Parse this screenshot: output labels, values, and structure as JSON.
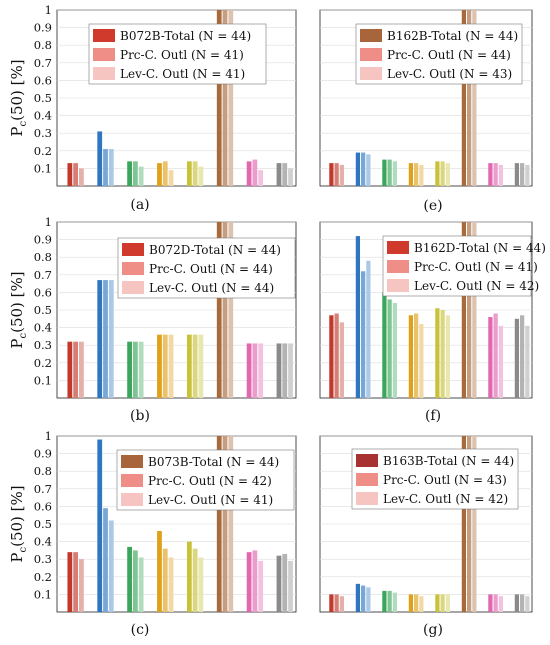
{
  "y_axis_label": {
    "main": "P",
    "sub": "c",
    "rest": "(50) [%]"
  },
  "chart_data": [
    {
      "panel": "(a)",
      "type": "bar",
      "ylim": [
        0,
        1
      ],
      "grid": true,
      "yticks": [
        "0.1",
        "0.2",
        "0.3",
        "0.4",
        "0.5",
        "0.6",
        "0.7",
        "0.8",
        "0.9",
        "1"
      ],
      "legend": [
        "B072B-Total (N = 44)",
        "Prc-C. Outl (N = 41)",
        "Lev-C. Outl (N = 41)"
      ],
      "legend_colors": [
        "#d03a2c",
        "#ee8e87",
        "#f7c5c1"
      ],
      "groups": [
        {
          "color": "#c0392b",
          "values": [
            0.13,
            0.13,
            0.1
          ]
        },
        {
          "color": "#2e77c0",
          "values": [
            0.31,
            0.21,
            0.21
          ]
        },
        {
          "color": "#3aa65a",
          "values": [
            0.14,
            0.14,
            0.11
          ]
        },
        {
          "color": "#dfa11b",
          "values": [
            0.13,
            0.14,
            0.09
          ]
        },
        {
          "color": "#c8c23a",
          "values": [
            0.14,
            0.14,
            0.11
          ]
        },
        {
          "color": "#a86a3a",
          "values": [
            1.0,
            1.0,
            1.0
          ]
        },
        {
          "color": "#e067b0",
          "values": [
            0.14,
            0.15,
            0.09
          ]
        },
        {
          "color": "#8a8a8a",
          "values": [
            0.13,
            0.13,
            0.1
          ]
        }
      ]
    },
    {
      "panel": "(b)",
      "type": "bar",
      "ylim": [
        0,
        1
      ],
      "grid": true,
      "yticks": [
        "0.1",
        "0.2",
        "0.3",
        "0.4",
        "0.5",
        "0.6",
        "0.7",
        "0.8",
        "0.9",
        "1"
      ],
      "legend": [
        "B072D-Total (N = 44)",
        "Prc-C. Outl (N = 44)",
        "Lev-C. Outl (N = 44)"
      ],
      "legend_colors": [
        "#d03a2c",
        "#ee8e87",
        "#f7c5c1"
      ],
      "groups": [
        {
          "color": "#c0392b",
          "values": [
            0.32,
            0.32,
            0.32
          ]
        },
        {
          "color": "#2e77c0",
          "values": [
            0.67,
            0.67,
            0.67
          ]
        },
        {
          "color": "#3aa65a",
          "values": [
            0.32,
            0.32,
            0.32
          ]
        },
        {
          "color": "#dfa11b",
          "values": [
            0.36,
            0.36,
            0.36
          ]
        },
        {
          "color": "#c8c23a",
          "values": [
            0.36,
            0.36,
            0.36
          ]
        },
        {
          "color": "#a86a3a",
          "values": [
            1.0,
            1.0,
            1.0
          ]
        },
        {
          "color": "#e067b0",
          "values": [
            0.31,
            0.31,
            0.31
          ]
        },
        {
          "color": "#8a8a8a",
          "values": [
            0.31,
            0.31,
            0.31
          ]
        }
      ]
    },
    {
      "panel": "(c)",
      "type": "bar",
      "ylim": [
        0,
        1
      ],
      "grid": true,
      "yticks": [
        "0.1",
        "0.2",
        "0.3",
        "0.4",
        "0.5",
        "0.6",
        "0.7",
        "0.8",
        "0.9",
        "1"
      ],
      "legend": [
        "B073B-Total (N = 44)",
        "Prc-C. Outl (N = 42)",
        "Lev-C. Outl (N = 41)"
      ],
      "legend_colors": [
        "#a8643a",
        "#ee8e87",
        "#f7c5c1"
      ],
      "groups": [
        {
          "color": "#c0392b",
          "values": [
            0.34,
            0.34,
            0.3
          ]
        },
        {
          "color": "#2e77c0",
          "values": [
            0.98,
            0.59,
            0.52
          ]
        },
        {
          "color": "#3aa65a",
          "values": [
            0.37,
            0.35,
            0.31
          ]
        },
        {
          "color": "#dfa11b",
          "values": [
            0.46,
            0.36,
            0.31
          ]
        },
        {
          "color": "#c8c23a",
          "values": [
            0.4,
            0.36,
            0.31
          ]
        },
        {
          "color": "#a86a3a",
          "values": [
            1.0,
            1.0,
            1.0
          ]
        },
        {
          "color": "#e067b0",
          "values": [
            0.34,
            0.35,
            0.29
          ]
        },
        {
          "color": "#8a8a8a",
          "values": [
            0.32,
            0.33,
            0.29
          ]
        }
      ]
    },
    {
      "panel": "(e)",
      "type": "bar",
      "ylim": [
        0,
        1
      ],
      "grid": true,
      "yticks": [],
      "legend": [
        "B162B-Total (N = 44)",
        "Prc-C. Outl (N = 44)",
        "Lev-C. Outl (N = 43)"
      ],
      "legend_colors": [
        "#a8643a",
        "#ee8e87",
        "#f7c5c1"
      ],
      "groups": [
        {
          "color": "#c0392b",
          "values": [
            0.13,
            0.13,
            0.12
          ]
        },
        {
          "color": "#2e77c0",
          "values": [
            0.19,
            0.19,
            0.18
          ]
        },
        {
          "color": "#3aa65a",
          "values": [
            0.15,
            0.15,
            0.14
          ]
        },
        {
          "color": "#dfa11b",
          "values": [
            0.13,
            0.13,
            0.12
          ]
        },
        {
          "color": "#c8c23a",
          "values": [
            0.14,
            0.14,
            0.13
          ]
        },
        {
          "color": "#a86a3a",
          "values": [
            1.0,
            1.0,
            1.0
          ]
        },
        {
          "color": "#e067b0",
          "values": [
            0.13,
            0.13,
            0.12
          ]
        },
        {
          "color": "#8a8a8a",
          "values": [
            0.13,
            0.13,
            0.12
          ]
        }
      ]
    },
    {
      "panel": "(f)",
      "type": "bar",
      "ylim": [
        0,
        1
      ],
      "grid": true,
      "yticks": [],
      "legend": [
        "B162D-Total (N = 44)",
        "Prc-C. Outl (N = 41)",
        "Lev-C. Outl (N = 42)"
      ],
      "legend_colors": [
        "#d03a2c",
        "#ee8e87",
        "#f7c5c1"
      ],
      "groups": [
        {
          "color": "#c0392b",
          "values": [
            0.47,
            0.48,
            0.43
          ]
        },
        {
          "color": "#2e77c0",
          "values": [
            0.92,
            0.72,
            0.78
          ]
        },
        {
          "color": "#3aa65a",
          "values": [
            0.6,
            0.56,
            0.54
          ]
        },
        {
          "color": "#dfa11b",
          "values": [
            0.47,
            0.48,
            0.42
          ]
        },
        {
          "color": "#c8c23a",
          "values": [
            0.51,
            0.5,
            0.47
          ]
        },
        {
          "color": "#a86a3a",
          "values": [
            1.0,
            1.0,
            1.0
          ]
        },
        {
          "color": "#e067b0",
          "values": [
            0.46,
            0.48,
            0.41
          ]
        },
        {
          "color": "#8a8a8a",
          "values": [
            0.45,
            0.47,
            0.41
          ]
        }
      ]
    },
    {
      "panel": "(g)",
      "type": "bar",
      "ylim": [
        0,
        1
      ],
      "grid": true,
      "yticks": [],
      "legend": [
        "B163B-Total (N = 44)",
        "Prc-C. Outl (N = 43)",
        "Lev-C. Outl (N = 42)"
      ],
      "legend_colors": [
        "#a83232",
        "#ee8e87",
        "#f7c5c1"
      ],
      "groups": [
        {
          "color": "#c0392b",
          "values": [
            0.1,
            0.1,
            0.09
          ]
        },
        {
          "color": "#2e77c0",
          "values": [
            0.16,
            0.15,
            0.14
          ]
        },
        {
          "color": "#3aa65a",
          "values": [
            0.12,
            0.12,
            0.11
          ]
        },
        {
          "color": "#dfa11b",
          "values": [
            0.1,
            0.1,
            0.09
          ]
        },
        {
          "color": "#c8c23a",
          "values": [
            0.1,
            0.1,
            0.1
          ]
        },
        {
          "color": "#a86a3a",
          "values": [
            1.0,
            1.0,
            1.0
          ]
        },
        {
          "color": "#e067b0",
          "values": [
            0.1,
            0.1,
            0.09
          ]
        },
        {
          "color": "#8a8a8a",
          "values": [
            0.1,
            0.1,
            0.09
          ]
        }
      ]
    }
  ]
}
